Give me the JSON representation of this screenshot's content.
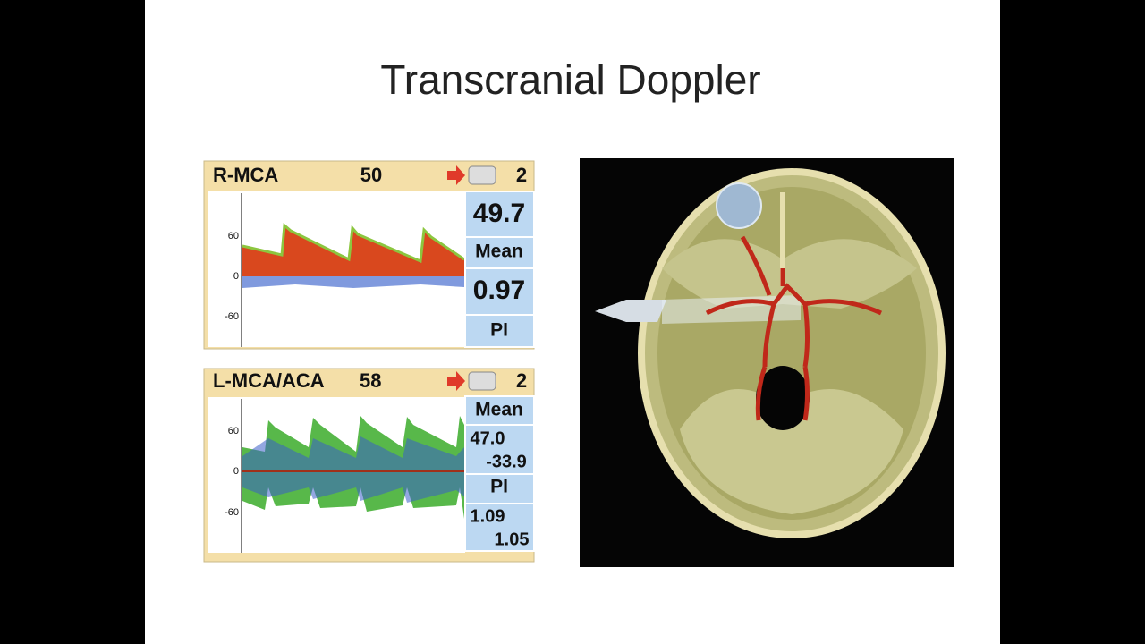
{
  "slide": {
    "title": "Transcranial Doppler",
    "panels": [
      {
        "label": "R-MCA",
        "depth": "50",
        "channel": "2",
        "ticks": [
          "60",
          "0",
          "-60"
        ],
        "readouts": [
          "49.7",
          "Mean",
          "0.97",
          "PI"
        ]
      },
      {
        "label": "L-MCA/ACA",
        "depth": "58",
        "channel": "2",
        "ticks": [
          "60",
          "0",
          "-60"
        ],
        "readouts": [
          "Mean",
          "47.0",
          "-33.9",
          "PI",
          "1.09",
          "1.05"
        ]
      }
    ]
  }
}
